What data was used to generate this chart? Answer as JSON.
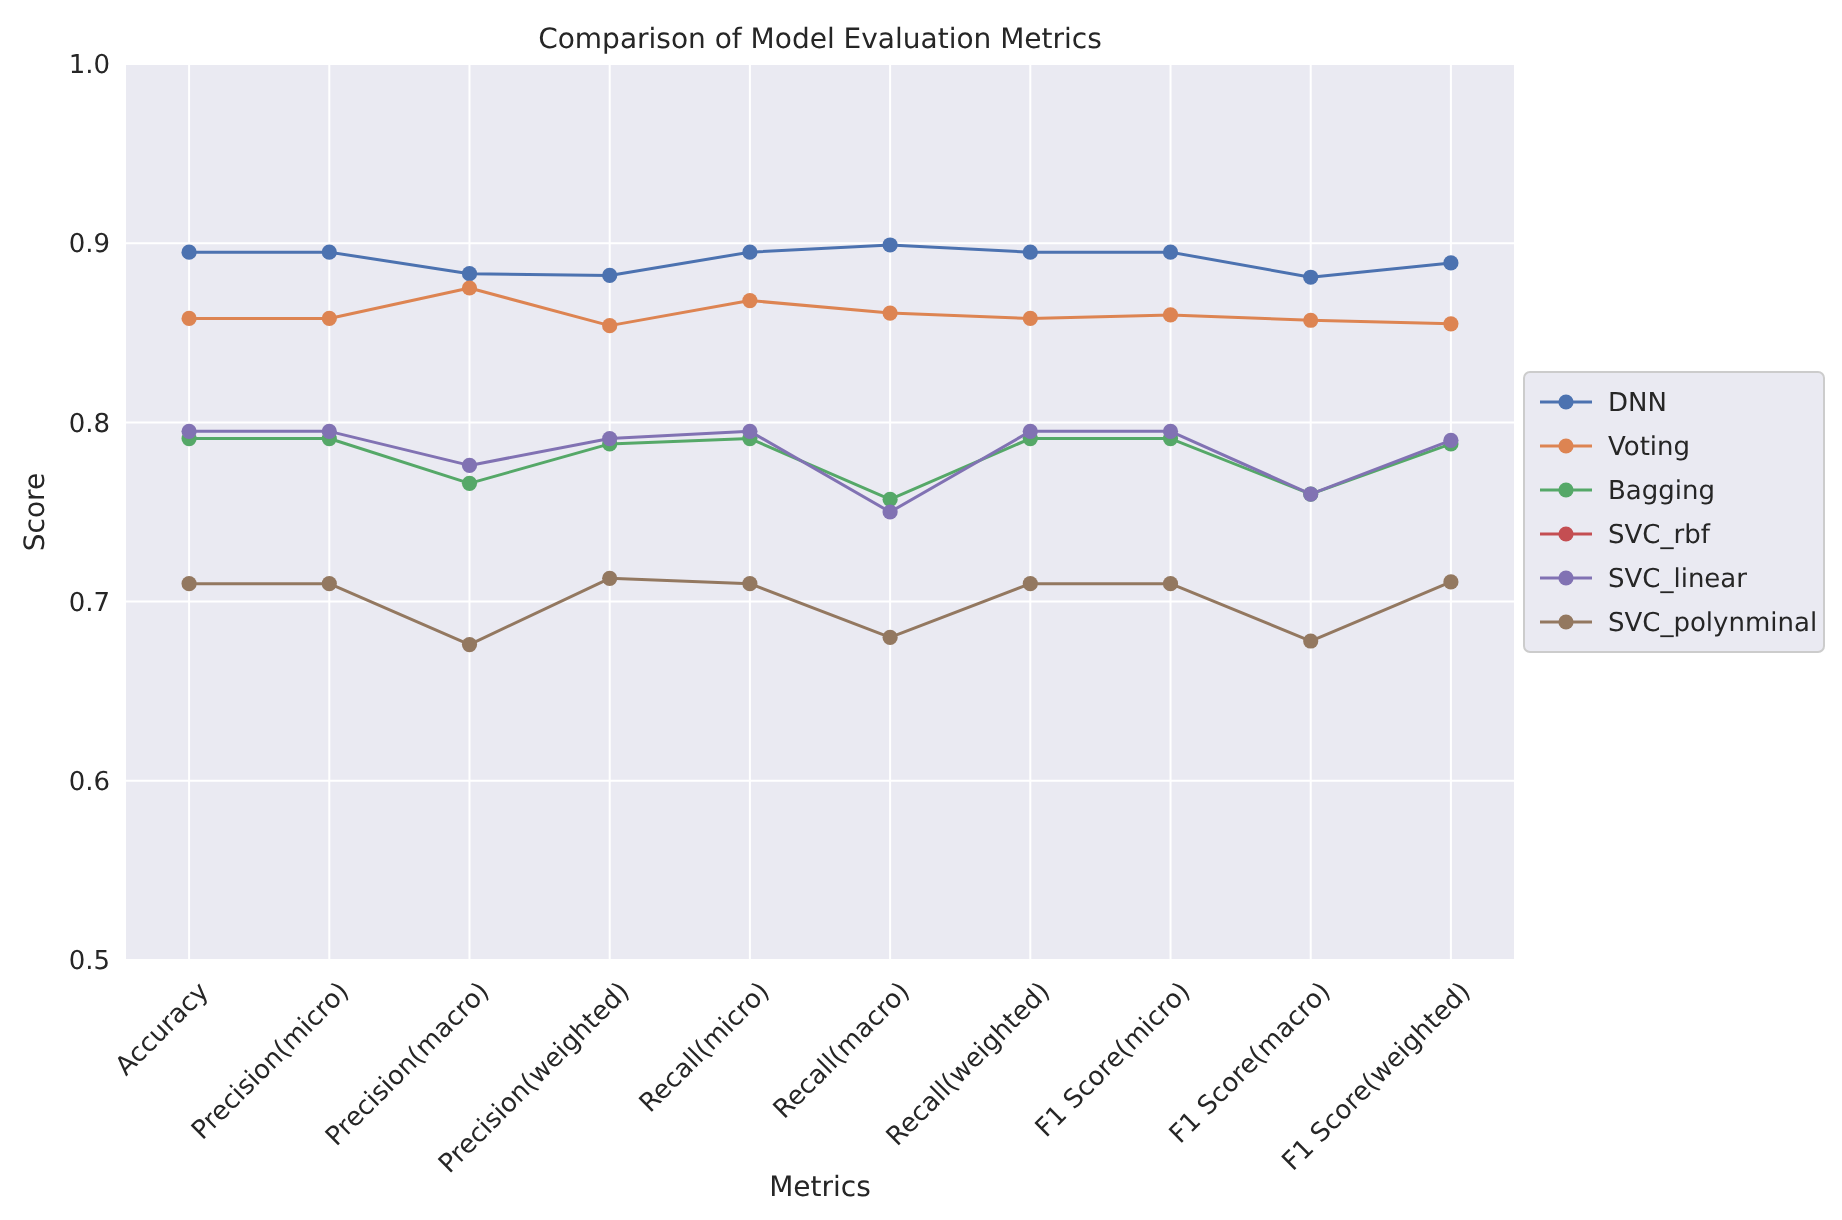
{
  "chart_data": {
    "type": "line",
    "title": "Comparison of Model Evaluation Metrics",
    "xlabel": "Metrics",
    "ylabel": "Score",
    "categories": [
      "Accuracy",
      "Precision(micro)",
      "Precision(macro)",
      "Precision(weighted)",
      "Recall(micro)",
      "Recall(macro)",
      "Recall(weighted)",
      "F1 Score(micro)",
      "F1 Score(macro)",
      "F1 Score(weighted)"
    ],
    "series": [
      {
        "name": "DNN",
        "color": "#4c72b0",
        "values": [
          0.895,
          0.895,
          0.883,
          0.882,
          0.895,
          0.899,
          0.895,
          0.895,
          0.881,
          0.889
        ]
      },
      {
        "name": "Voting",
        "color": "#dd8452",
        "values": [
          0.858,
          0.858,
          0.875,
          0.854,
          0.868,
          0.861,
          0.858,
          0.86,
          0.857,
          0.855
        ]
      },
      {
        "name": "Bagging",
        "color": "#55a868",
        "values": [
          0.791,
          0.791,
          0.766,
          0.788,
          0.791,
          0.757,
          0.791,
          0.791,
          0.76,
          0.788
        ]
      },
      {
        "name": "SVC_rbf",
        "color": "#c44e52",
        "values": [
          null,
          null,
          null,
          null,
          null,
          null,
          null,
          null,
          null,
          null
        ]
      },
      {
        "name": "SVC_linear",
        "color": "#8172b3",
        "values": [
          0.795,
          0.795,
          0.776,
          0.791,
          0.795,
          0.75,
          0.795,
          0.795,
          0.76,
          0.79
        ]
      },
      {
        "name": "SVC_polynminal",
        "color": "#937860",
        "values": [
          0.71,
          0.71,
          0.676,
          0.713,
          0.71,
          0.68,
          0.71,
          0.71,
          0.678,
          0.711
        ]
      }
    ],
    "ylim": [
      0.5,
      1.0
    ],
    "yticks": [
      0.5,
      0.6,
      0.7,
      0.8,
      0.9,
      {
        "value": 1,
        "label": "1.0"
      }
    ],
    "grid": true,
    "legend": "right",
    "marker": "circle",
    "line_style": "solid"
  }
}
